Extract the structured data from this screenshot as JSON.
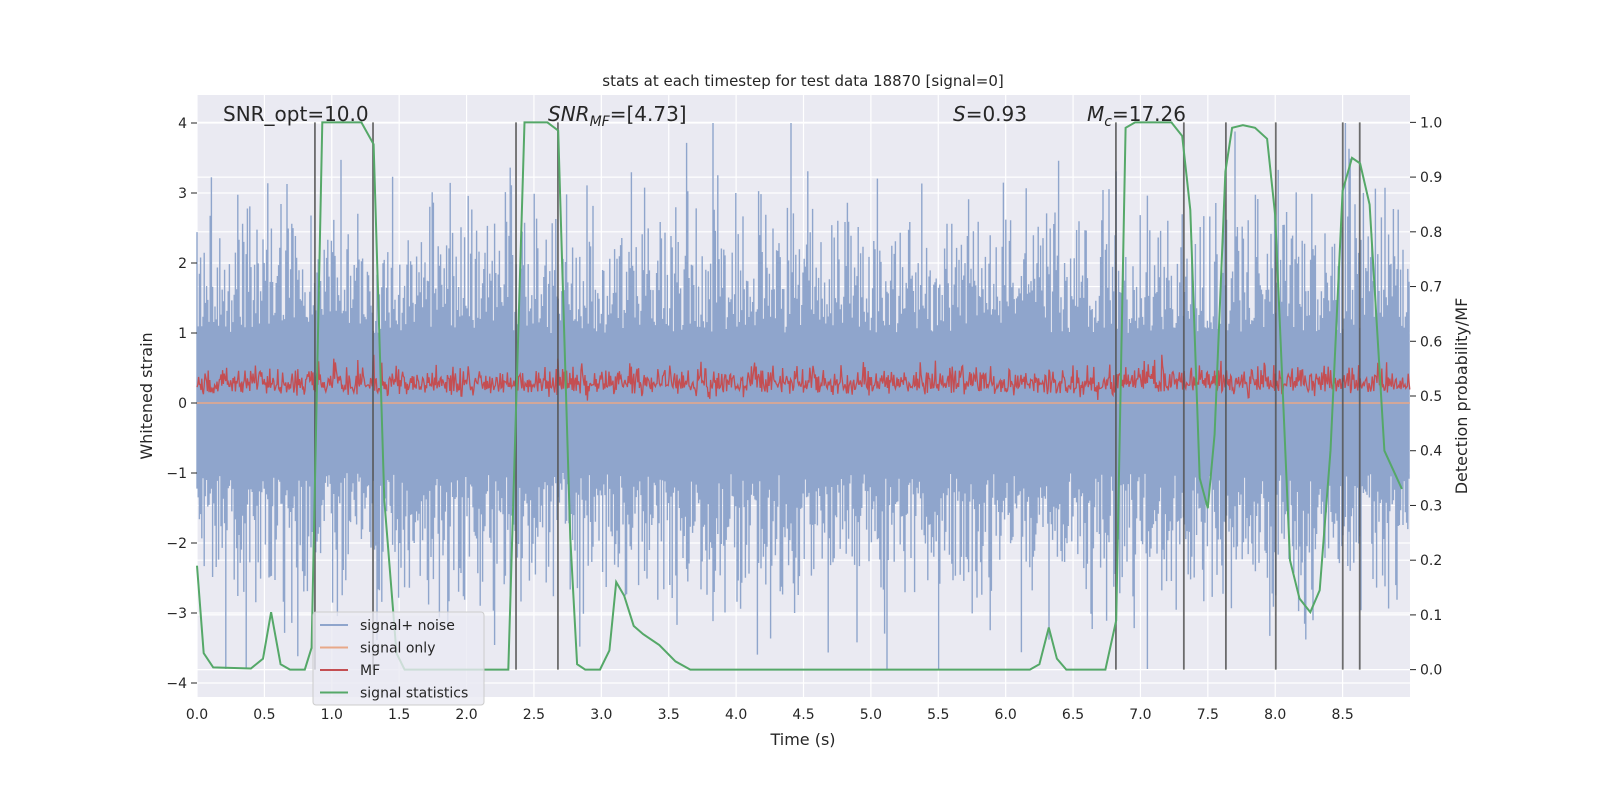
{
  "chart_data": {
    "type": "line",
    "title": "stats at each timestep for test data 18870 [signal=0]",
    "xlabel": "Time (s)",
    "ylabel": "Whitened strain",
    "ylabel_right": "Detection probability/MF",
    "xlim": [
      0,
      9.0
    ],
    "ylim": [
      -4.2,
      4.4
    ],
    "ylim_right": [
      -0.05,
      1.05
    ],
    "grid": true,
    "x_ticks": [
      "0.0",
      "0.5",
      "1.0",
      "1.5",
      "2.0",
      "2.5",
      "3.0",
      "3.5",
      "4.0",
      "4.5",
      "5.0",
      "5.5",
      "6.0",
      "6.5",
      "7.0",
      "7.5",
      "8.0",
      "8.5"
    ],
    "y_ticks": [
      "4",
      "3",
      "2",
      "1",
      "0",
      "−1",
      "−2",
      "−3",
      "−4"
    ],
    "y_ticks_right": [
      "1.0",
      "0.9",
      "0.8",
      "0.7",
      "0.6",
      "0.5",
      "0.4",
      "0.3",
      "0.2",
      "0.1",
      "0.0"
    ],
    "annotations": {
      "snr_opt": "SNR_opt=10.0",
      "snr_mf_main": "SNR",
      "snr_mf_sub": "MF",
      "snr_mf_value": "=[4.73]",
      "s_label": "S",
      "s_value": "=0.93",
      "mc_main": "M",
      "mc_sub": "c",
      "mc_value": "=17.26"
    },
    "legend": {
      "placement": "lower-left",
      "entries": [
        {
          "label": "signal+ noise",
          "color": "#8fa5cc"
        },
        {
          "label": "signal only",
          "color": "#e8a888"
        },
        {
          "label": "MF",
          "color": "#c44e52"
        },
        {
          "label": "signal statistics",
          "color": "#55a868"
        }
      ]
    },
    "detection_lines_s": [
      0.875,
      1.306,
      2.367,
      2.678,
      6.818,
      7.322,
      7.634,
      8.004,
      8.501,
      8.627
    ],
    "signal_statistics": {
      "x": [
        0,
        0.05,
        0.12,
        0.4,
        0.49,
        0.55,
        0.62,
        0.69,
        0.8,
        0.85,
        0.93,
        1.22,
        1.31,
        1.39,
        1.48,
        1.54,
        2.31,
        2.43,
        2.6,
        2.68,
        2.77,
        2.82,
        2.88,
        2.99,
        3.06,
        3.11,
        3.17,
        3.24,
        3.31,
        3.43,
        3.55,
        3.66,
        6.18,
        6.25,
        6.32,
        6.38,
        6.45,
        6.74,
        6.82,
        6.89,
        6.96,
        7.23,
        7.31,
        7.37,
        7.44,
        7.5,
        7.55,
        7.63,
        7.68,
        7.76,
        7.85,
        7.94,
        8.0,
        8.11,
        8.18,
        8.26,
        8.33,
        8.41,
        8.5,
        8.57,
        8.63,
        8.7,
        8.81,
        8.94
      ],
      "y": [
        0.19,
        0.03,
        0.004,
        0.002,
        0.02,
        0.105,
        0.01,
        0,
        0,
        0.04,
        1.0,
        1.0,
        0.96,
        0.31,
        0.03,
        0,
        0,
        1.0,
        1.0,
        0.985,
        0.24,
        0.01,
        0,
        0,
        0.035,
        0.16,
        0.135,
        0.08,
        0.065,
        0.045,
        0.015,
        0,
        0,
        0.01,
        0.077,
        0.02,
        0,
        0,
        0.09,
        0.99,
        1.0,
        1.0,
        0.975,
        0.84,
        0.35,
        0.295,
        0.43,
        0.91,
        0.99,
        0.995,
        0.99,
        0.97,
        0.83,
        0.2,
        0.13,
        0.105,
        0.145,
        0.4,
        0.875,
        0.935,
        0.925,
        0.85,
        0.4,
        0.33
      ]
    },
    "series_colors": {
      "noise": "#8fa5cc",
      "signal": "#e8a888",
      "mf": "#c44e52",
      "stat": "#55a868",
      "bg": "#eaeaf2"
    }
  }
}
